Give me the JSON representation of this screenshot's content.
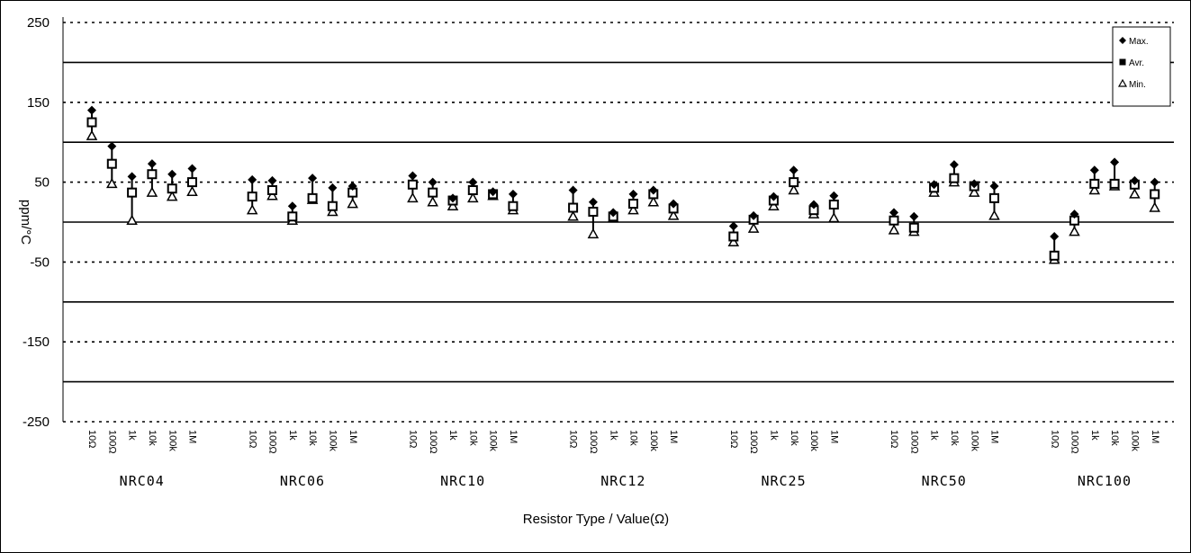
{
  "chart_data": {
    "type": "scatter",
    "title": "",
    "xlabel": "Resistor Type / Value(Ω)",
    "ylabel": "ppm/°C",
    "ylim": [
      -250,
      250
    ],
    "yticks": [
      250,
      150,
      50,
      -50,
      -150,
      -250
    ],
    "solid_lines": [
      200,
      100,
      0,
      -100,
      -200
    ],
    "dashed_lines": [
      250,
      150,
      50,
      -50,
      -150,
      -250
    ],
    "legend": {
      "position": "top-right",
      "entries": [
        "Max.",
        "Avr.",
        "Min."
      ]
    },
    "groups": [
      {
        "name": "NRC04",
        "categories": [
          "10Ω",
          "100Ω",
          "1k",
          "10k",
          "100k",
          "1M"
        ],
        "max": [
          140,
          95,
          57,
          73,
          60,
          67
        ],
        "avg": [
          125,
          73,
          37,
          60,
          42,
          50
        ],
        "min": [
          108,
          48,
          2,
          37,
          32,
          38
        ]
      },
      {
        "name": "NRC06",
        "categories": [
          "10Ω",
          "100Ω",
          "1k",
          "10k",
          "100k",
          "1M"
        ],
        "max": [
          53,
          52,
          20,
          55,
          43,
          45
        ],
        "avg": [
          32,
          40,
          7,
          30,
          20,
          37
        ],
        "min": [
          15,
          33,
          2,
          28,
          13,
          23
        ]
      },
      {
        "name": "NRC10",
        "categories": [
          "10Ω",
          "100Ω",
          "1k",
          "10k",
          "100k",
          "1M"
        ],
        "max": [
          58,
          50,
          30,
          50,
          38,
          35
        ],
        "avg": [
          47,
          37,
          27,
          40,
          35,
          20
        ],
        "min": [
          30,
          25,
          20,
          30,
          33,
          15
        ]
      },
      {
        "name": "NRC12",
        "categories": [
          "10Ω",
          "100Ω",
          "1k",
          "10k",
          "100k",
          "1M"
        ],
        "max": [
          40,
          25,
          12,
          35,
          40,
          23
        ],
        "avg": [
          18,
          13,
          7,
          23,
          35,
          17
        ],
        "min": [
          7,
          -15,
          5,
          15,
          25,
          8
        ]
      },
      {
        "name": "NRC25",
        "categories": [
          "10Ω",
          "100Ω",
          "1k",
          "10k",
          "100k",
          "1M"
        ],
        "max": [
          -5,
          8,
          32,
          65,
          22,
          33
        ],
        "avg": [
          -18,
          3,
          27,
          50,
          15,
          22
        ],
        "min": [
          -25,
          -8,
          20,
          40,
          10,
          5
        ]
      },
      {
        "name": "NRC50",
        "categories": [
          "10Ω",
          "100Ω",
          "1k",
          "10k",
          "100k",
          "1M"
        ],
        "max": [
          12,
          7,
          47,
          72,
          48,
          45
        ],
        "avg": [
          2,
          -7,
          43,
          55,
          45,
          30
        ],
        "min": [
          -10,
          -12,
          37,
          50,
          37,
          8
        ]
      },
      {
        "name": "NRC100",
        "categories": [
          "10Ω",
          "100Ω",
          "1k",
          "10k",
          "100k",
          "1M"
        ],
        "max": [
          -18,
          10,
          65,
          75,
          52,
          50
        ],
        "avg": [
          -42,
          2,
          48,
          48,
          47,
          35
        ],
        "min": [
          -47,
          -12,
          40,
          45,
          35,
          18
        ]
      }
    ]
  }
}
